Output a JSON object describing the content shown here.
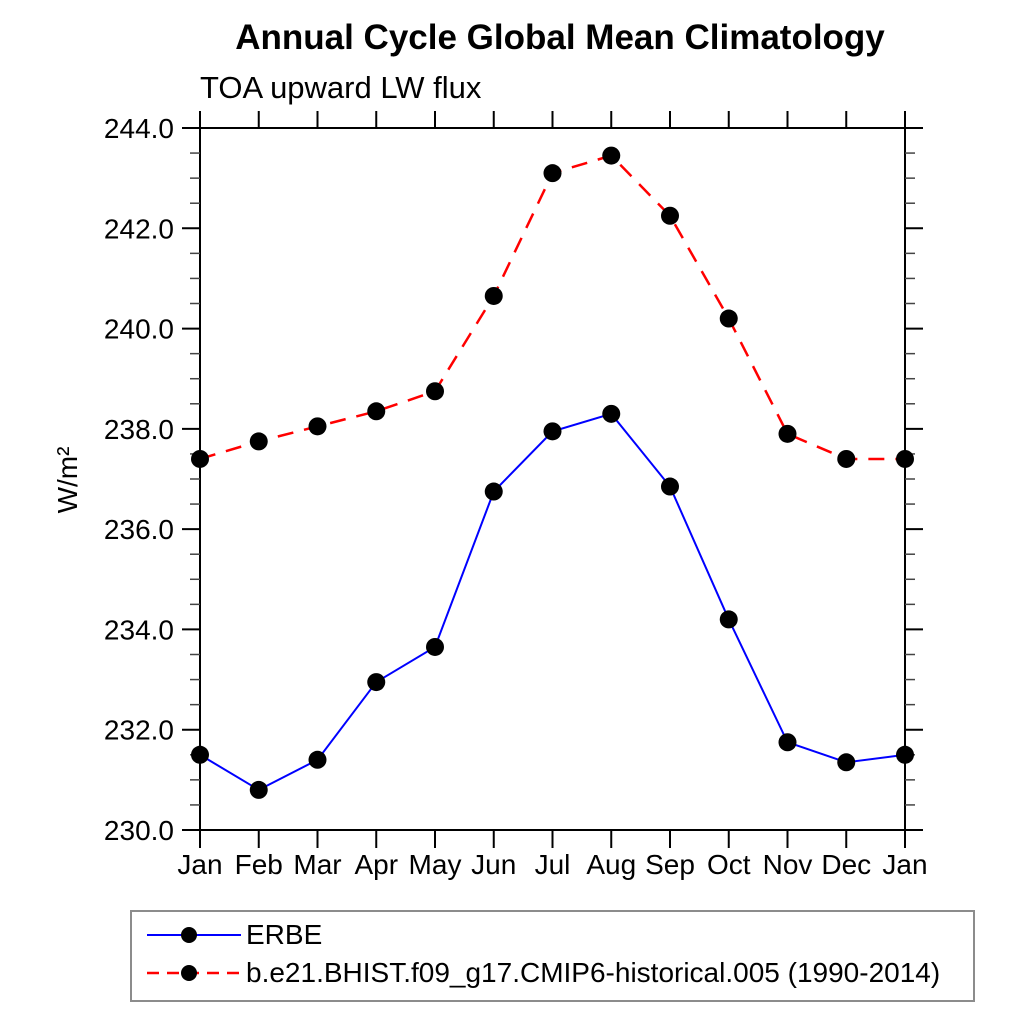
{
  "chart_data": {
    "type": "line",
    "title": "Annual Cycle Global Mean Climatology",
    "subtitle": "TOA upward LW flux",
    "ylabel": "W/m²",
    "xlabel": "",
    "categories": [
      "Jan",
      "Feb",
      "Mar",
      "Apr",
      "May",
      "Jun",
      "Jul",
      "Aug",
      "Sep",
      "Oct",
      "Nov",
      "Dec",
      "Jan"
    ],
    "ylim": [
      230.0,
      244.0
    ],
    "y_major_step": 2.0,
    "y_minor_step": 0.5,
    "y_tick_decimals": 1,
    "grid": false,
    "legend_position": "bottom-left",
    "axis_color": "#000000",
    "marker_shape": "filled-circle",
    "series": [
      {
        "name": "ERBE",
        "color": "#0000ff",
        "line_style": "solid",
        "marker_color": "#000000",
        "values": [
          231.5,
          230.8,
          231.4,
          232.95,
          233.65,
          236.75,
          237.95,
          238.3,
          236.85,
          234.2,
          231.75,
          231.35,
          231.5
        ]
      },
      {
        "name": "b.e21.BHIST.f09_g17.CMIP6-historical.005 (1990-2014)",
        "color": "#ff0000",
        "line_style": "dashed",
        "marker_color": "#000000",
        "values": [
          237.4,
          237.75,
          238.05,
          238.35,
          238.75,
          240.65,
          243.1,
          243.45,
          242.25,
          240.2,
          237.9,
          237.4,
          237.4
        ]
      }
    ]
  }
}
